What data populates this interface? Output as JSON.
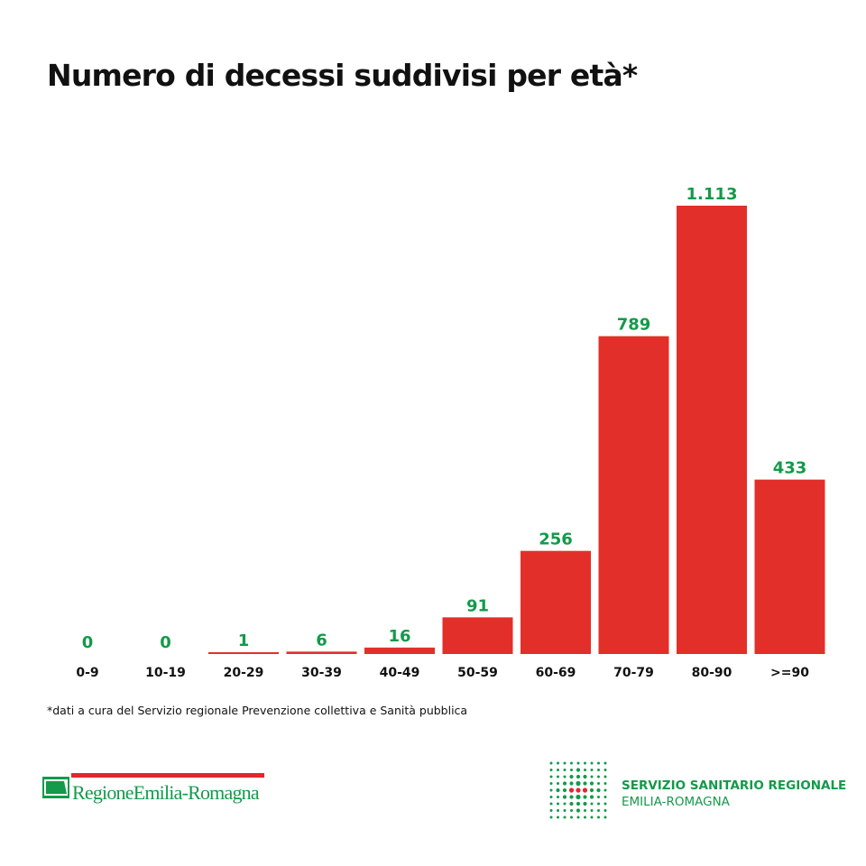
{
  "chart_data": {
    "type": "bar",
    "title": "Numero di decessi suddivisi per età*",
    "categories": [
      "0-9",
      "10-19",
      "20-29",
      "30-39",
      "40-49",
      "50-59",
      "60-69",
      "70-79",
      "80-90",
      ">=90"
    ],
    "values": [
      0,
      0,
      1,
      6,
      16,
      91,
      256,
      789,
      1113,
      433
    ],
    "value_labels": [
      "0",
      "0",
      "1",
      "6",
      "16",
      "91",
      "256",
      "789",
      "1.113",
      "433"
    ],
    "xlabel": "",
    "ylabel": "",
    "ylim": [
      0,
      1113
    ],
    "grid": false,
    "legend": "none"
  },
  "footnote": "*dati a cura del Servizio regionale Prevenzione collettiva e Sanità pubblica",
  "logos": {
    "regione": "RegioneEmilia-Romagna",
    "ssr_line1": "SERVIZIO SANITARIO REGIONALE",
    "ssr_line2": "EMILIA-ROMAGNA"
  },
  "colors": {
    "bar": "#e32f2a",
    "value_label": "#139a4a",
    "category_label": "#111111",
    "brand_green": "#139a4a",
    "brand_red": "#e3262d"
  }
}
